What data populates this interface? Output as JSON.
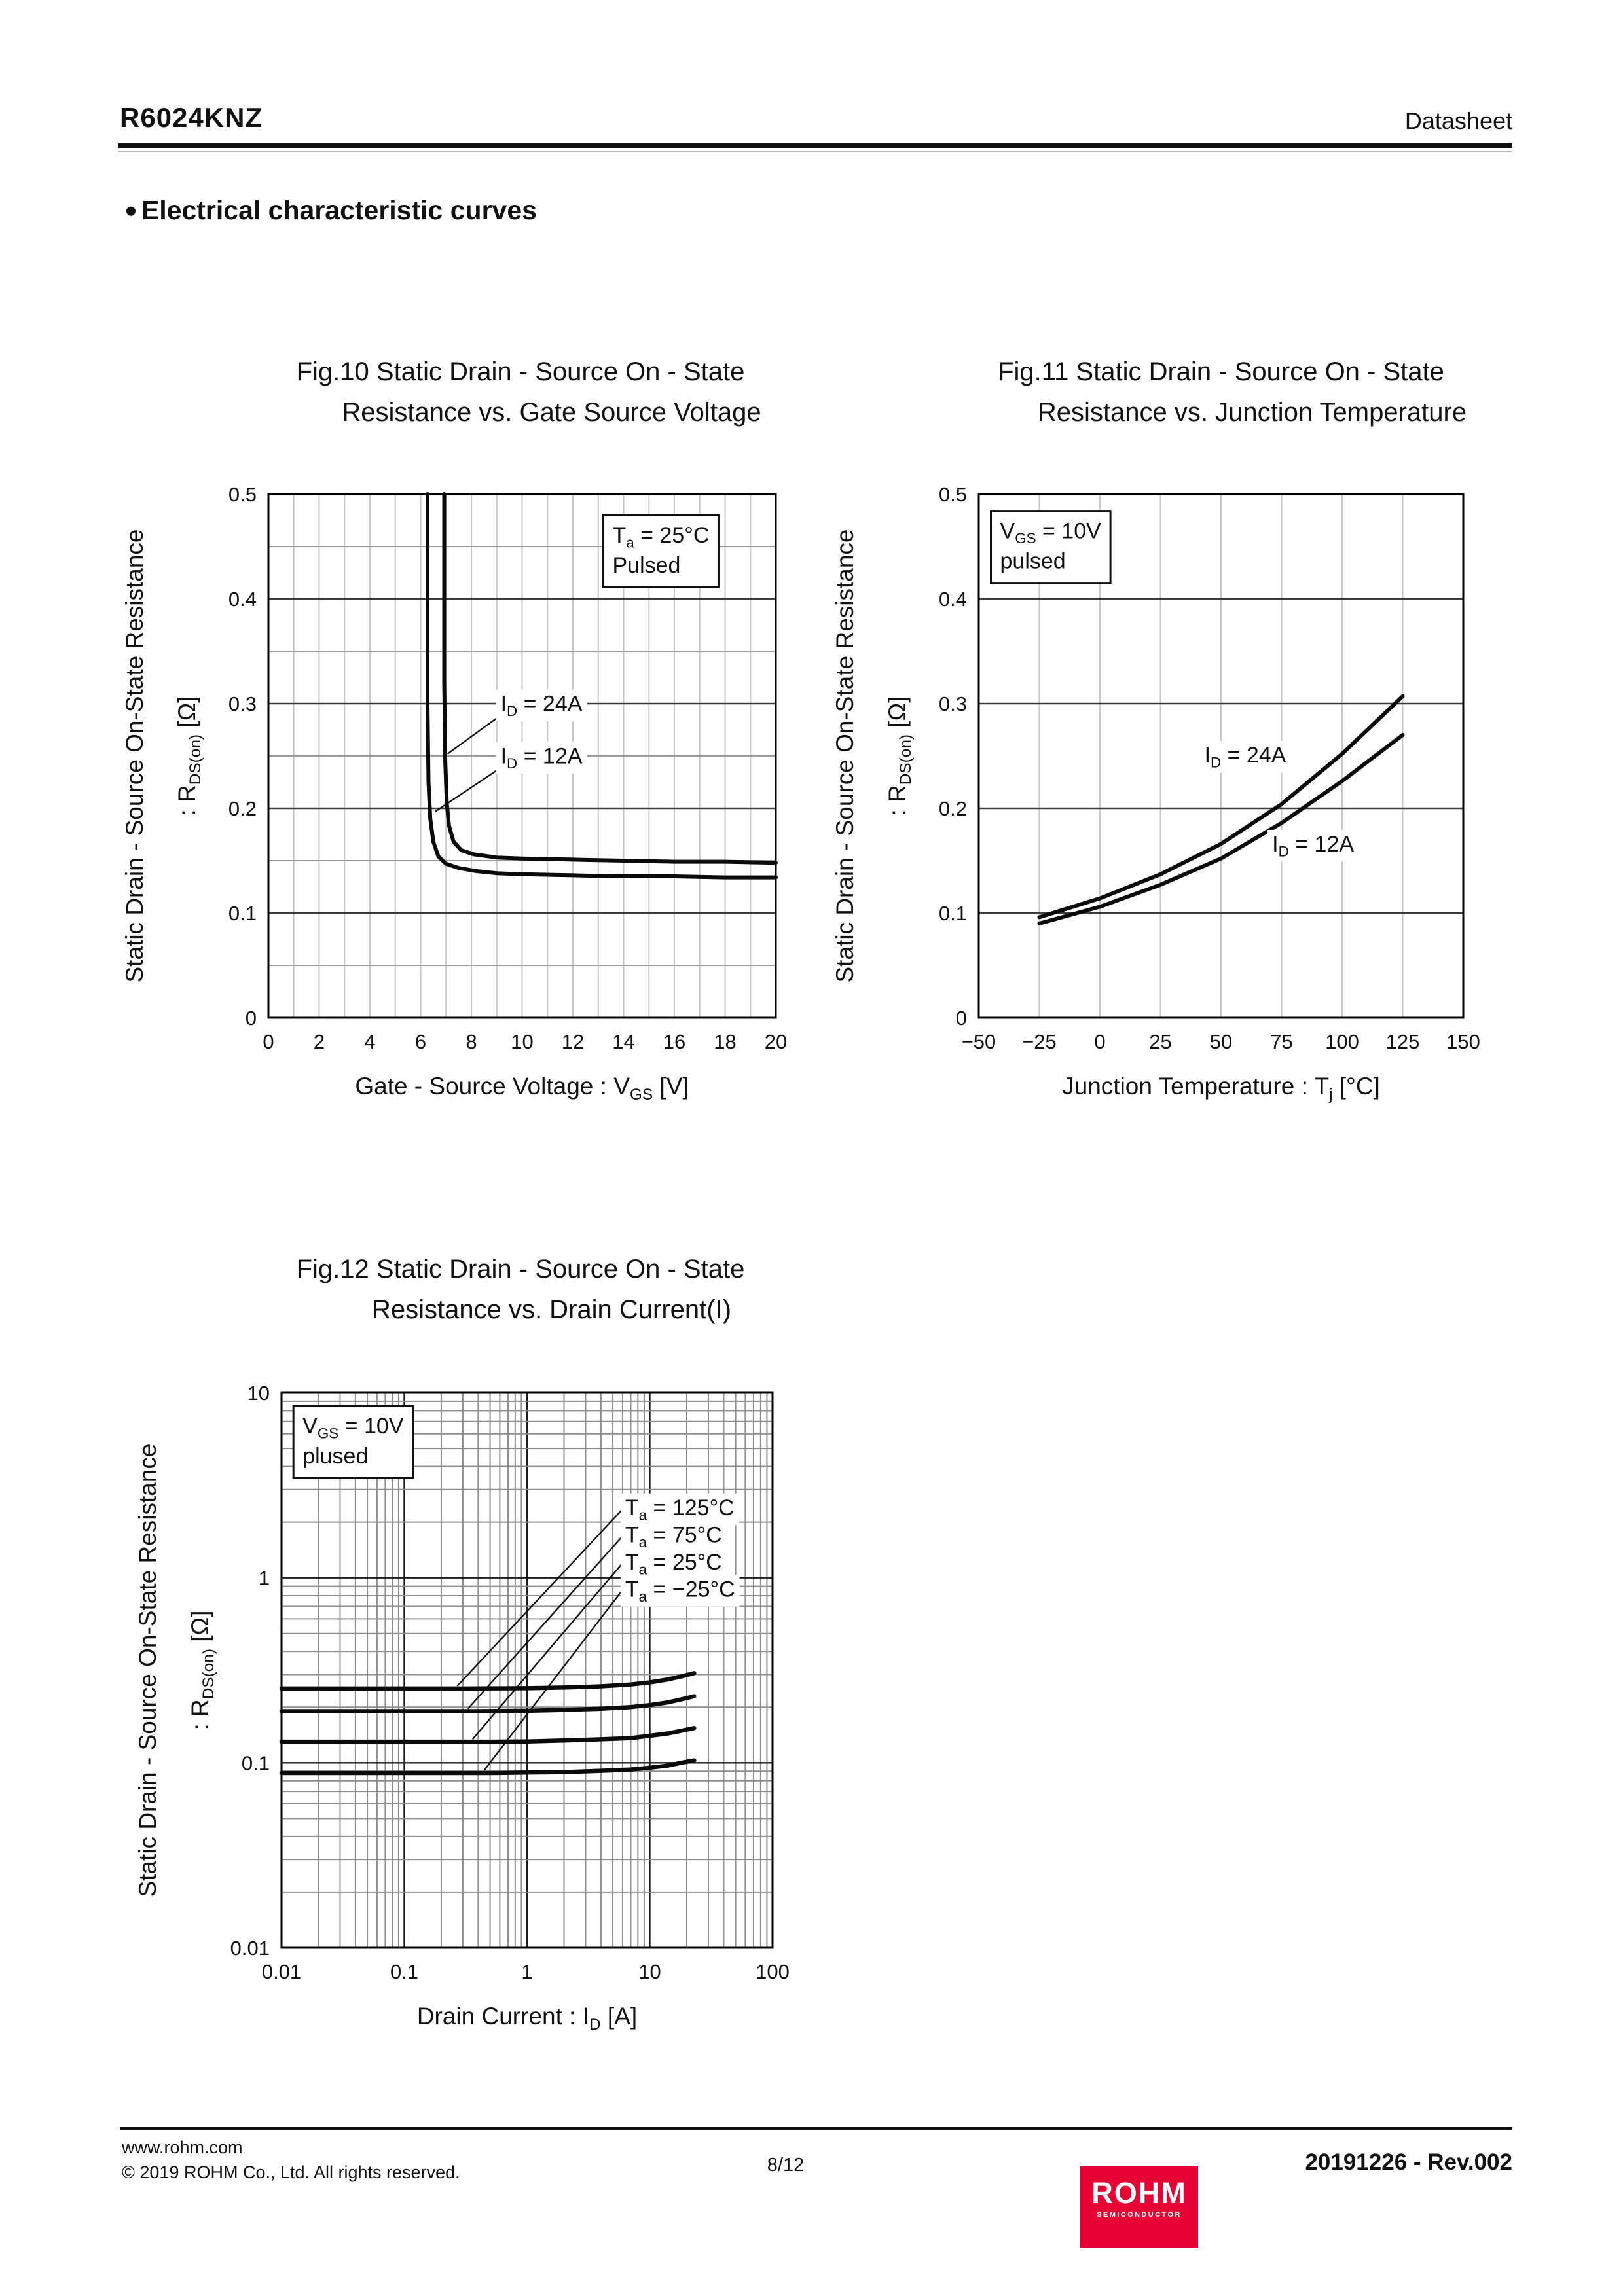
{
  "page": {
    "header": {
      "part_number": "R6024KNZ",
      "doc_type": "Datasheet"
    },
    "section": {
      "bullet": "●",
      "title": "Electrical characteristic curves"
    },
    "footer": {
      "url": "www.rohm.com",
      "copyright": "© 2019 ROHM Co., Ltd. All rights reserved.",
      "page_number": "8/12",
      "revision": "20191226 - Rev.002",
      "logo": {
        "brand": "ROHM",
        "sub": "SEMICONDUCTOR",
        "color": "#e60033"
      }
    },
    "colors": {
      "text": "#111111",
      "brand_red": "#e60033"
    }
  },
  "chart_data": [
    {
      "id": "fig10",
      "type": "line",
      "title_lines": [
        "Fig.10 Static Drain - Source On - State",
        "Resistance vs. Gate Source Voltage"
      ],
      "xlabel": "Gate - Source Voltage : V_{GS} [V]",
      "ylabel_lines": [
        "Static Drain - Source On-State Resistance",
        ": R_{DS(on)} [Ω]"
      ],
      "x": {
        "scale": "linear",
        "min": 0,
        "max": 20,
        "tick_values": [
          0,
          2,
          4,
          6,
          8,
          10,
          12,
          14,
          16,
          18,
          20
        ],
        "tick_labels": [
          "0",
          "2",
          "4",
          "6",
          "8",
          "10",
          "12",
          "14",
          "16",
          "18",
          "20"
        ],
        "grid_minor": [
          1,
          2,
          3,
          4,
          5,
          6,
          7,
          8,
          9,
          10,
          11,
          12,
          13,
          14,
          15,
          16,
          17,
          18,
          19
        ],
        "grid_major": []
      },
      "y": {
        "scale": "linear",
        "min": 0,
        "max": 0.5,
        "tick_values": [
          0,
          0.1,
          0.2,
          0.3,
          0.4,
          0.5
        ],
        "tick_labels": [
          "0",
          "0.1",
          "0.2",
          "0.3",
          "0.4",
          "0.5"
        ],
        "grid_minor": [
          0.05,
          0.15,
          0.25,
          0.35,
          0.45
        ],
        "grid_major": [
          0.1,
          0.2,
          0.3,
          0.4
        ]
      },
      "annotation": {
        "x": 13.2,
        "y": 0.48,
        "lines": [
          "T_{a} = 25°C",
          "Pulsed"
        ]
      },
      "series": [
        {
          "name": "I_{D} = 24A",
          "points": [
            [
              6.93,
              0.5
            ],
            [
              6.93,
              0.32
            ],
            [
              6.97,
              0.245
            ],
            [
              7.03,
              0.205
            ],
            [
              7.12,
              0.183
            ],
            [
              7.3,
              0.168
            ],
            [
              7.6,
              0.16
            ],
            [
              8.1,
              0.156
            ],
            [
              9,
              0.153
            ],
            [
              10,
              0.152
            ],
            [
              12,
              0.151
            ],
            [
              14,
              0.15
            ],
            [
              16,
              0.149
            ],
            [
              18,
              0.149
            ],
            [
              20,
              0.148
            ]
          ]
        },
        {
          "name": "I_{D} = 12A",
          "points": [
            [
              6.27,
              0.5
            ],
            [
              6.27,
              0.3
            ],
            [
              6.31,
              0.225
            ],
            [
              6.38,
              0.19
            ],
            [
              6.5,
              0.168
            ],
            [
              6.7,
              0.154
            ],
            [
              7.0,
              0.147
            ],
            [
              7.5,
              0.143
            ],
            [
              8.2,
              0.14
            ],
            [
              9,
              0.138
            ],
            [
              10,
              0.137
            ],
            [
              12,
              0.136
            ],
            [
              14,
              0.135
            ],
            [
              16,
              0.135
            ],
            [
              18,
              0.134
            ],
            [
              20,
              0.134
            ]
          ]
        }
      ],
      "series_labels": [
        {
          "text": "I_{D} = 24A",
          "x": 9.15,
          "y": 0.3,
          "anchor": "start"
        },
        {
          "text": "I_{D} = 12A",
          "x": 9.15,
          "y": 0.25,
          "anchor": "start"
        }
      ],
      "leaders": [
        {
          "from": [
            9.05,
            0.287
          ],
          "to": [
            7.06,
            0.252
          ]
        },
        {
          "from": [
            9.05,
            0.237
          ],
          "to": [
            6.58,
            0.197
          ]
        }
      ]
    },
    {
      "id": "fig11",
      "type": "line",
      "title_lines": [
        "Fig.11 Static Drain - Source On - State",
        "Resistance vs. Junction Temperature"
      ],
      "xlabel": "Junction Temperature : T_{j} [°C]",
      "ylabel_lines": [
        "Static Drain - Source On-State Resistance",
        ": R_{DS(on)} [Ω]"
      ],
      "x": {
        "scale": "linear",
        "min": -50,
        "max": 150,
        "tick_values": [
          -50,
          -25,
          0,
          25,
          50,
          75,
          100,
          125,
          150
        ],
        "tick_labels": [
          "−50",
          "−25",
          "0",
          "25",
          "50",
          "75",
          "100",
          "125",
          "150"
        ],
        "grid_minor": [
          -25,
          0,
          25,
          50,
          75,
          100,
          125
        ],
        "grid_major": []
      },
      "y": {
        "scale": "linear",
        "min": 0,
        "max": 0.5,
        "tick_values": [
          0,
          0.1,
          0.2,
          0.3,
          0.4,
          0.5
        ],
        "tick_labels": [
          "0",
          "0.1",
          "0.2",
          "0.3",
          "0.4",
          "0.5"
        ],
        "grid_minor": [],
        "grid_major": [
          0.1,
          0.2,
          0.3,
          0.4
        ]
      },
      "annotation": {
        "x": -45,
        "y": 0.484,
        "lines": [
          "V_{GS} = 10V",
          "pulsed"
        ]
      },
      "series": [
        {
          "name": "I_{D} = 24A",
          "points": [
            [
              -25,
              0.096
            ],
            [
              0,
              0.114
            ],
            [
              25,
              0.137
            ],
            [
              50,
              0.166
            ],
            [
              75,
              0.204
            ],
            [
              100,
              0.252
            ],
            [
              125,
              0.307
            ]
          ]
        },
        {
          "name": "I_{D} = 12A",
          "points": [
            [
              -25,
              0.09
            ],
            [
              0,
              0.106
            ],
            [
              25,
              0.127
            ],
            [
              50,
              0.152
            ],
            [
              75,
              0.186
            ],
            [
              100,
              0.226
            ],
            [
              125,
              0.27
            ]
          ]
        }
      ],
      "series_labels": [
        {
          "text": "I_{D} = 24A",
          "x": 60,
          "y": 0.251,
          "anchor": "middle"
        },
        {
          "text": "I_{D} = 12A",
          "x": 88,
          "y": 0.166,
          "anchor": "middle"
        }
      ],
      "leaders": []
    },
    {
      "id": "fig12",
      "type": "line",
      "title_lines": [
        "Fig.12 Static Drain - Source On - State",
        "Resistance vs. Drain Current(I)"
      ],
      "xlabel": "Drain Current : I_{D} [A]",
      "ylabel_lines": [
        "Static Drain - Source On-State Resistance",
        ": R_{DS(on)} [Ω]"
      ],
      "x": {
        "scale": "log",
        "min": 0.01,
        "max": 100,
        "tick_values": [
          0.01,
          0.1,
          1,
          10,
          100
        ],
        "tick_labels": [
          "0.01",
          "0.1",
          "1",
          "10",
          "100"
        ],
        "grid_minor": [
          0.02,
          0.03,
          0.04,
          0.05,
          0.06,
          0.07,
          0.08,
          0.09,
          0.2,
          0.3,
          0.4,
          0.5,
          0.6,
          0.7,
          0.8,
          0.9,
          2,
          3,
          4,
          5,
          6,
          7,
          8,
          9,
          20,
          30,
          40,
          50,
          60,
          70,
          80,
          90
        ],
        "grid_major": [
          0.1,
          1,
          10
        ]
      },
      "y": {
        "scale": "log",
        "min": 0.01,
        "max": 10,
        "tick_values": [
          0.01,
          0.1,
          1,
          10
        ],
        "tick_labels": [
          "0.01",
          "0.1",
          "1",
          "10"
        ],
        "grid_minor": [
          0.02,
          0.03,
          0.04,
          0.05,
          0.06,
          0.07,
          0.08,
          0.09,
          0.2,
          0.3,
          0.4,
          0.5,
          0.6,
          0.7,
          0.8,
          0.9,
          2,
          3,
          4,
          5,
          6,
          7,
          8,
          9
        ],
        "grid_major": [
          0.1,
          1
        ]
      },
      "annotation": {
        "x": 0.0125,
        "y": 8.5,
        "lines": [
          "V_{GS} = 10V",
          "plused"
        ]
      },
      "series": [
        {
          "name": "T_{a} = 125°C",
          "points": [
            [
              0.01,
              0.252
            ],
            [
              0.3,
              0.252
            ],
            [
              1,
              0.253
            ],
            [
              2,
              0.255
            ],
            [
              4,
              0.259
            ],
            [
              7,
              0.265
            ],
            [
              10,
              0.272
            ],
            [
              14,
              0.282
            ],
            [
              18,
              0.293
            ],
            [
              23,
              0.305
            ]
          ]
        },
        {
          "name": "T_{a} = 75°C",
          "points": [
            [
              0.01,
              0.19
            ],
            [
              0.4,
              0.19
            ],
            [
              1,
              0.191
            ],
            [
              2,
              0.193
            ],
            [
              4,
              0.196
            ],
            [
              7,
              0.2
            ],
            [
              10,
              0.205
            ],
            [
              14,
              0.212
            ],
            [
              18,
              0.22
            ],
            [
              23,
              0.229
            ]
          ]
        },
        {
          "name": "T_{a} = 25°C",
          "points": [
            [
              0.01,
              0.13
            ],
            [
              0.5,
              0.13
            ],
            [
              1,
              0.1305
            ],
            [
              2,
              0.132
            ],
            [
              4,
              0.134
            ],
            [
              7,
              0.136
            ],
            [
              10,
              0.14
            ],
            [
              14,
              0.144
            ],
            [
              18,
              0.149
            ],
            [
              23,
              0.154
            ]
          ]
        },
        {
          "name": "T_{a} = −25°C",
          "points": [
            [
              0.01,
              0.088
            ],
            [
              0.5,
              0.088
            ],
            [
              1,
              0.0885
            ],
            [
              2,
              0.089
            ],
            [
              4,
              0.0905
            ],
            [
              7,
              0.092
            ],
            [
              10,
              0.094
            ],
            [
              14,
              0.0965
            ],
            [
              18,
              0.1
            ],
            [
              23,
              0.103
            ]
          ]
        }
      ],
      "series_labels": [
        {
          "text": "T_{a} = 125°C",
          "x": 6.3,
          "y": 2.4,
          "anchor": "start"
        },
        {
          "text": "T_{a} = 75°C",
          "x": 6.3,
          "y": 1.71,
          "anchor": "start"
        },
        {
          "text": "T_{a} = 25°C",
          "x": 6.3,
          "y": 1.22,
          "anchor": "start"
        },
        {
          "text": "T_{a} = −25°C",
          "x": 6.3,
          "y": 0.87,
          "anchor": "start"
        }
      ],
      "leaders": [
        {
          "from": [
            6.0,
            2.35
          ],
          "to": [
            0.27,
            0.26
          ]
        },
        {
          "from": [
            6.0,
            1.68
          ],
          "to": [
            0.33,
            0.196
          ]
        },
        {
          "from": [
            6.0,
            1.2
          ],
          "to": [
            0.36,
            0.134
          ]
        },
        {
          "from": [
            6.0,
            0.86
          ],
          "to": [
            0.45,
            0.0915
          ]
        }
      ]
    }
  ]
}
